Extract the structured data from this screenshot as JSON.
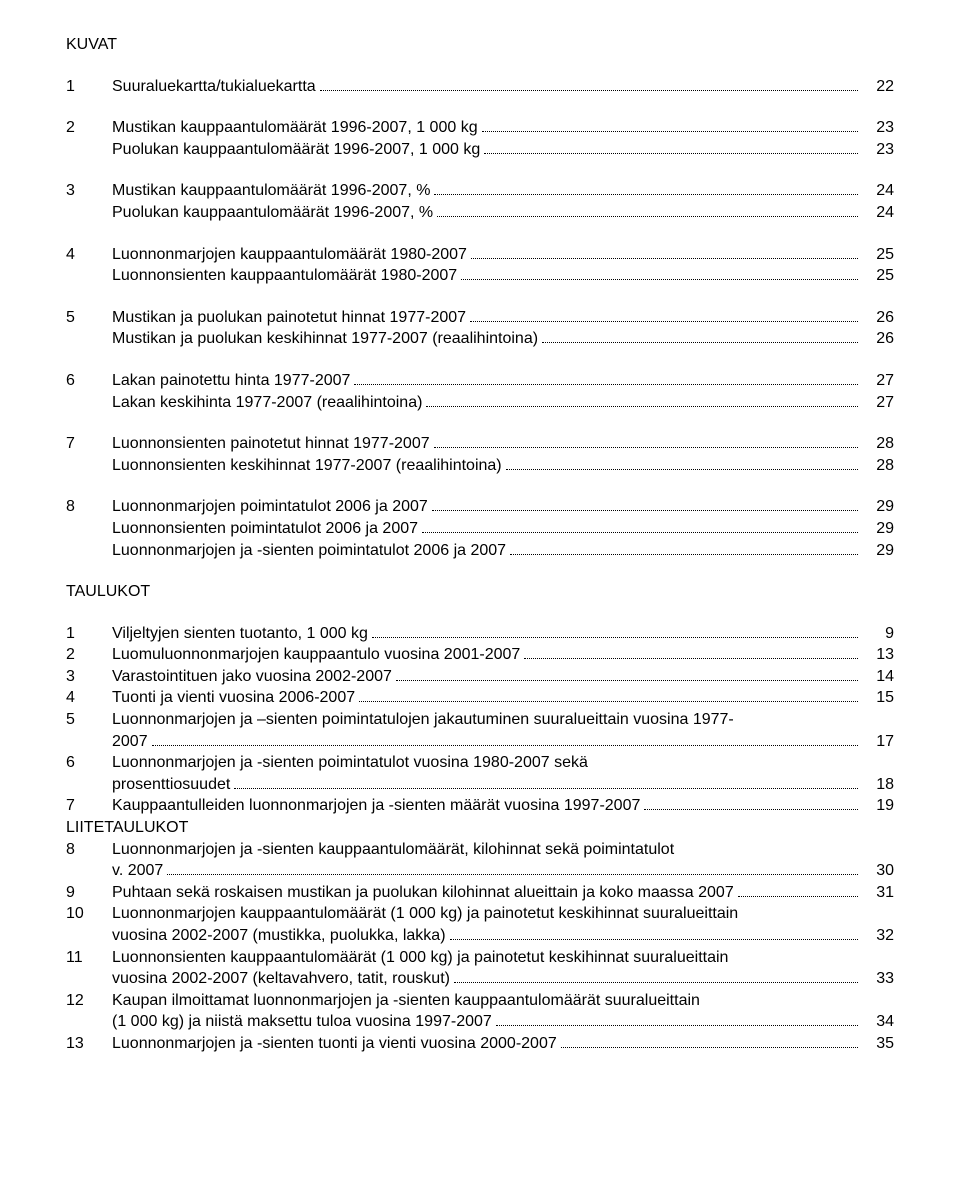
{
  "headings": {
    "kuvat": "KUVAT",
    "taulukot": "TAULUKOT",
    "liite": "LIITETAULUKOT"
  },
  "kuvat": [
    {
      "num": "1",
      "lines": [
        {
          "text": "Suuraluekartta/tukialuekartta",
          "page": "22"
        }
      ]
    },
    {
      "num": "2",
      "lines": [
        {
          "text": "Mustikan kauppaantulomäärät 1996-2007, 1 000 kg",
          "page": "23"
        },
        {
          "text": "Puolukan kauppaantulomäärät 1996-2007, 1 000 kg",
          "page": "23"
        }
      ]
    },
    {
      "num": "3",
      "lines": [
        {
          "text": "Mustikan kauppaantulomäärät 1996-2007, %",
          "page": "24"
        },
        {
          "text": "Puolukan kauppaantulomäärät 1996-2007, %",
          "page": "24"
        }
      ]
    },
    {
      "num": "4",
      "lines": [
        {
          "text": "Luonnonmarjojen kauppaantulomäärät 1980-2007",
          "page": "25"
        },
        {
          "text": "Luonnonsienten kauppaantulomäärät 1980-2007",
          "page": "25"
        }
      ]
    },
    {
      "num": "5",
      "lines": [
        {
          "text": "Mustikan ja puolukan painotetut hinnat 1977-2007",
          "page": "26"
        },
        {
          "text": "Mustikan ja puolukan keskihinnat 1977-2007 (reaalihintoina)",
          "page": "26"
        }
      ]
    },
    {
      "num": "6",
      "lines": [
        {
          "text": "Lakan painotettu hinta 1977-2007",
          "page": "27"
        },
        {
          "text": "Lakan keskihinta 1977-2007 (reaalihintoina)",
          "page": "27"
        }
      ]
    },
    {
      "num": "7",
      "lines": [
        {
          "text": "Luonnonsienten painotetut hinnat 1977-2007",
          "page": "28"
        },
        {
          "text": "Luonnonsienten keskihinnat 1977-2007 (reaalihintoina)",
          "page": "28"
        }
      ]
    },
    {
      "num": "8",
      "lines": [
        {
          "text": "Luonnonmarjojen poimintatulot 2006 ja 2007",
          "page": "29"
        },
        {
          "text": "Luonnonsienten poimintatulot 2006 ja 2007",
          "page": "29"
        },
        {
          "text": "Luonnonmarjojen ja -sienten poimintatulot 2006 ja 2007",
          "page": "29"
        }
      ]
    }
  ],
  "taulukot": [
    {
      "num": "1",
      "lines": [
        {
          "text": "Viljeltyjen sienten tuotanto, 1 000 kg",
          "page": "9"
        }
      ]
    },
    {
      "num": "2",
      "lines": [
        {
          "text": "Luomuluonnonmarjojen kauppaantulo vuosina 2001-2007",
          "page": "13"
        }
      ]
    },
    {
      "num": "3",
      "lines": [
        {
          "text": "Varastointituen jako vuosina 2002-2007",
          "page": "14"
        }
      ]
    },
    {
      "num": "4",
      "lines": [
        {
          "text": "Tuonti ja vienti vuosina 2006-2007",
          "page": "15"
        }
      ]
    },
    {
      "num": "5",
      "lines": [
        {
          "text": "Luonnonmarjojen ja –sienten poimintatulojen jakautuminen suuralueittain vuosina 1977-",
          "page": ""
        },
        {
          "text": "2007",
          "page": "17"
        }
      ]
    },
    {
      "num": "6",
      "lines": [
        {
          "text": "Luonnonmarjojen ja -sienten poimintatulot vuosina 1980-2007 sekä",
          "page": ""
        },
        {
          "text": "prosenttiosuudet",
          "page": "18"
        }
      ]
    },
    {
      "num": "7",
      "lines": [
        {
          "text": "Kauppaantulleiden luonnonmarjojen ja -sienten määrät vuosina 1997-2007",
          "page": "19"
        }
      ]
    }
  ],
  "liite": [
    {
      "num": "8",
      "lines": [
        {
          "text": "Luonnonmarjojen ja -sienten kauppaantulomäärät, kilohinnat sekä poimintatulot",
          "page": ""
        },
        {
          "text": "v. 2007",
          "page": "30"
        }
      ]
    },
    {
      "num": "9",
      "lines": [
        {
          "text": "Puhtaan sekä roskaisen mustikan ja puolukan kilohinnat alueittain ja koko maassa 2007",
          "page": "31"
        }
      ]
    },
    {
      "num": "10",
      "lines": [
        {
          "text": "Luonnonmarjojen kauppaantulomäärät (1 000 kg) ja painotetut keskihinnat suuralueittain",
          "page": ""
        },
        {
          "text": "vuosina 2002-2007 (mustikka, puolukka, lakka)",
          "page": "32"
        }
      ]
    },
    {
      "num": "11",
      "lines": [
        {
          "text": "Luonnonsienten kauppaantulomäärät (1 000 kg) ja painotetut keskihinnat suuralueittain",
          "page": ""
        },
        {
          "text": "vuosina 2002-2007 (keltavahvero, tatit, rouskut)",
          "page": "33"
        }
      ]
    },
    {
      "num": "12",
      "lines": [
        {
          "text": "Kaupan ilmoittamat luonnonmarjojen ja -sienten kauppaantulomäärät suuralueittain",
          "page": ""
        },
        {
          "text": "(1 000 kg) ja niistä maksettu tuloa vuosina 1997-2007",
          "page": "34"
        }
      ]
    },
    {
      "num": "13",
      "lines": [
        {
          "text": "Luonnonmarjojen ja -sienten tuonti ja vienti vuosina 2000-2007",
          "page": "35"
        }
      ]
    }
  ]
}
